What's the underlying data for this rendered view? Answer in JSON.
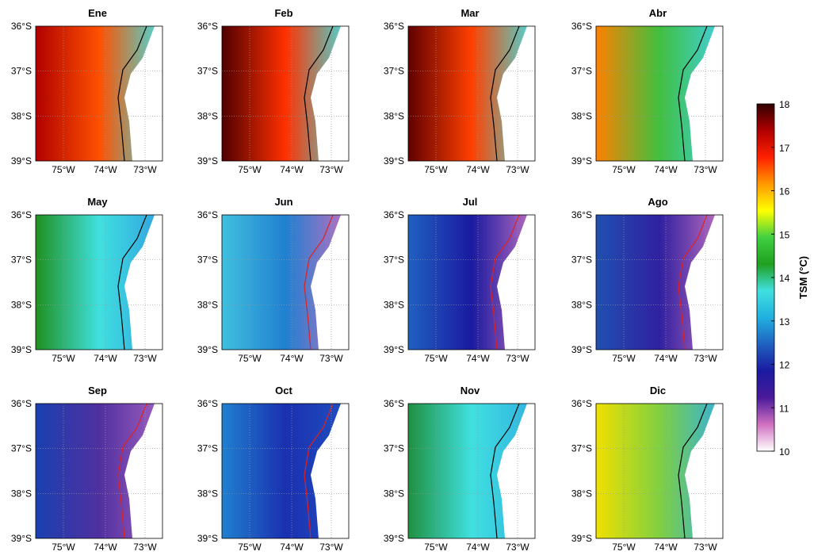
{
  "panels": [
    {
      "title": "Ene",
      "colors": [
        "#b00000",
        "#ff5000",
        "#40e0e0"
      ],
      "contour_color": "#000000"
    },
    {
      "title": "Feb",
      "colors": [
        "#500000",
        "#ff3000",
        "#40e0e0"
      ],
      "contour_color": "#000000"
    },
    {
      "title": "Mar",
      "colors": [
        "#600000",
        "#ff4000",
        "#40e0e0"
      ],
      "contour_color": "#000000"
    },
    {
      "title": "Abr",
      "colors": [
        "#ff8000",
        "#40c040",
        "#40d0e0"
      ],
      "contour_color": "#000000"
    },
    {
      "title": "May",
      "colors": [
        "#209020",
        "#40e0e0",
        "#30a0e0"
      ],
      "contour_color": "#000000"
    },
    {
      "title": "Jun",
      "colors": [
        "#40c0e0",
        "#2080d0",
        "#c070c0"
      ],
      "contour_color": "#e02020"
    },
    {
      "title": "Jul",
      "colors": [
        "#2060c0",
        "#1a1aa0",
        "#c070c0"
      ],
      "contour_color": "#e02020"
    },
    {
      "title": "Ago",
      "colors": [
        "#2050b0",
        "#3020a0",
        "#c070c0"
      ],
      "contour_color": "#e02020"
    },
    {
      "title": "Sep",
      "colors": [
        "#1a40b0",
        "#5030a0",
        "#a060c0"
      ],
      "contour_color": "#e02020"
    },
    {
      "title": "Oct",
      "colors": [
        "#2080d0",
        "#1a30b0",
        "#2050c0"
      ],
      "contour_color": "#e02020"
    },
    {
      "title": "Nov",
      "colors": [
        "#209040",
        "#40e0e0",
        "#30b0e0"
      ],
      "contour_color": "#000000"
    },
    {
      "title": "Dic",
      "colors": [
        "#f0e000",
        "#80d040",
        "#30b0e0"
      ],
      "contour_color": "#000000"
    }
  ],
  "lat_labels": [
    "36°S",
    "37°S",
    "38°S",
    "39°S"
  ],
  "lon_labels": [
    "75°W",
    "74°W",
    "73°W"
  ],
  "colorbar": {
    "label": "TSM (°C)",
    "range": [
      10,
      18
    ],
    "ticks": [
      10,
      11,
      12,
      13,
      14,
      15,
      16,
      17,
      18
    ],
    "colormap": [
      "#ffffff",
      "#d070c0",
      "#4a1a9a",
      "#1a1aa0",
      "#2060c0",
      "#20b0e0",
      "#40e0e0",
      "#20a020",
      "#40d040",
      "#ffff00",
      "#ff9900",
      "#ff2000",
      "#b00000",
      "#300000"
    ]
  }
}
